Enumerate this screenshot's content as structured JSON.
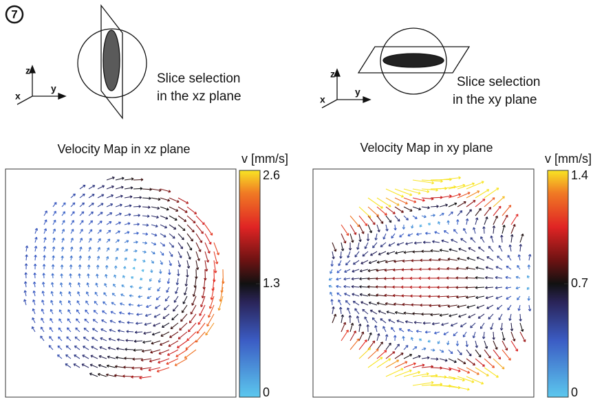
{
  "panel_label": "7",
  "schematics": [
    {
      "axes": [
        "z",
        "y",
        "x"
      ],
      "caption": [
        "Slice selection",
        "in the xz plane"
      ]
    },
    {
      "axes": [
        "z",
        "y",
        "x"
      ],
      "caption": [
        "Slice selection",
        "in the xy plane"
      ]
    }
  ],
  "maps": [
    {
      "title": "Velocity Map in xz plane",
      "colorbar": {
        "label": "v [mm/s]",
        "lim": [
          0,
          2.6
        ],
        "ticks": [
          0,
          1.3,
          2.6
        ]
      }
    },
    {
      "title": "Velocity Map in xy plane",
      "colorbar": {
        "label": "v [mm/s]",
        "lim": [
          0,
          1.4
        ],
        "ticks": [
          0,
          0.7,
          1.4
        ]
      }
    }
  ]
}
